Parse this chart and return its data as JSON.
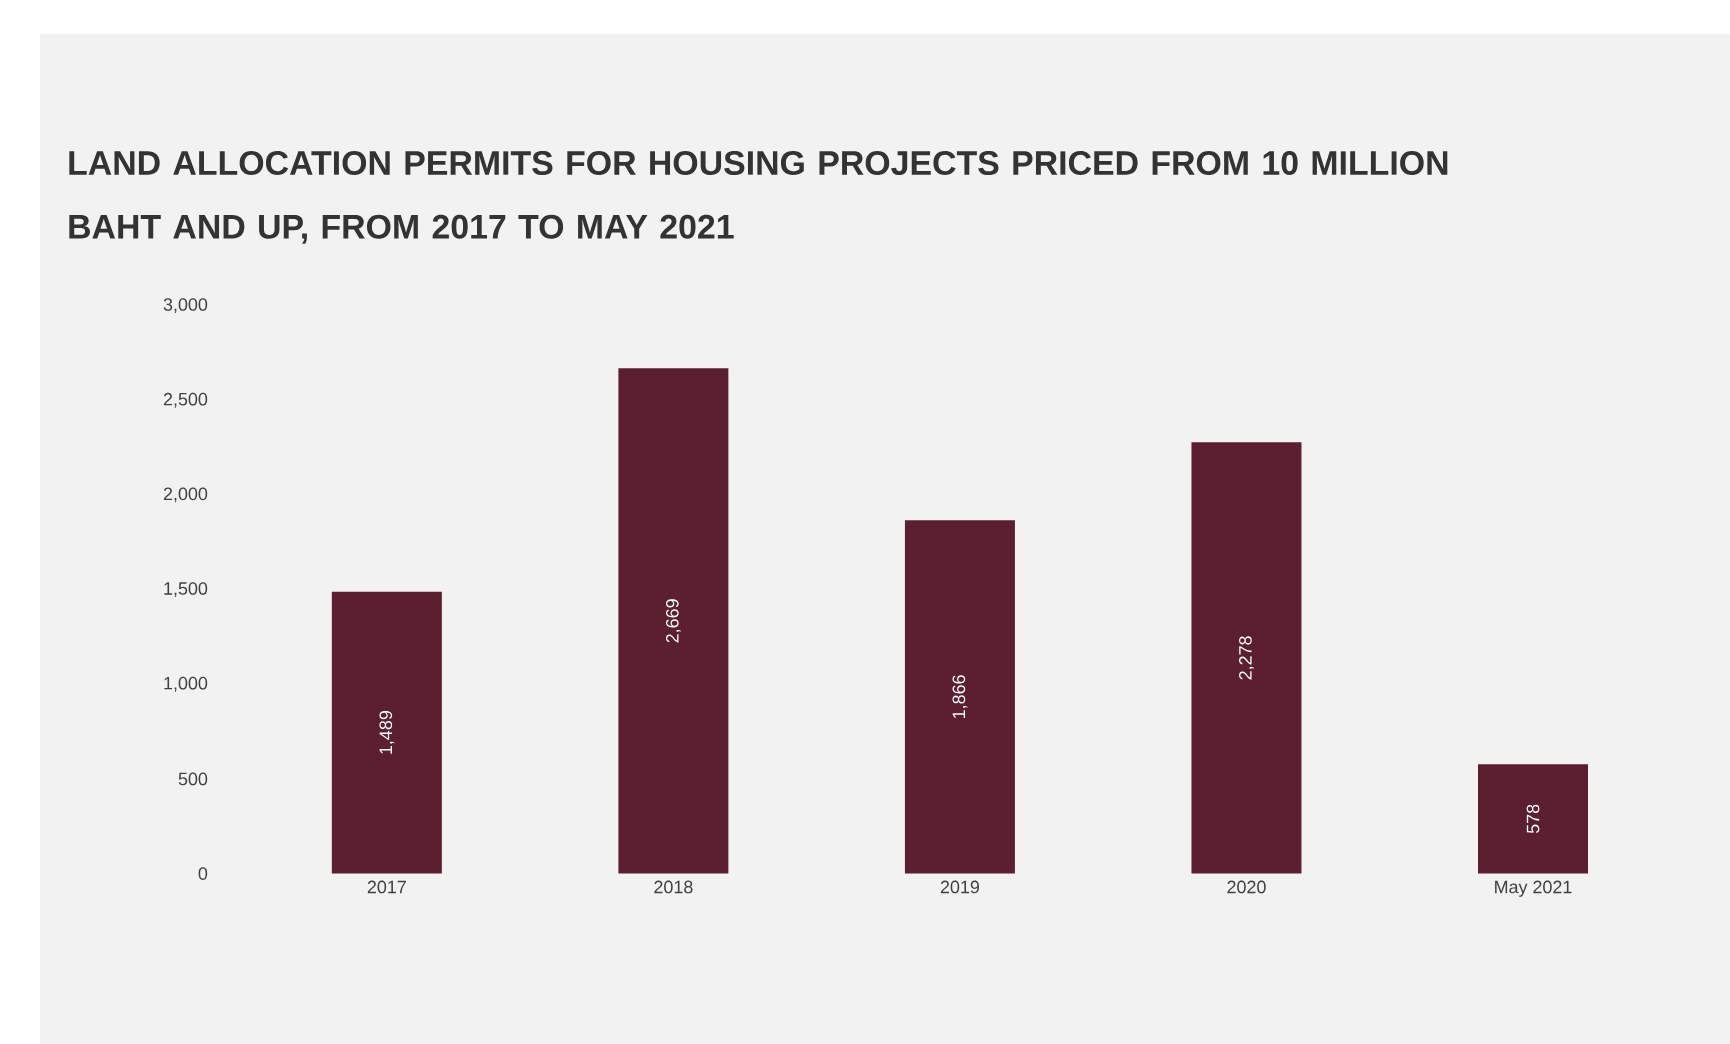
{
  "chart_data": {
    "type": "bar",
    "title": "LAND ALLOCATION PERMITS FOR HOUSING PROJECTS PRICED FROM 10 MILLION BAHT AND UP, FROM 2017 TO MAY 2021",
    "categories": [
      "2017",
      "2018",
      "2019",
      "2020",
      "May 2021"
    ],
    "values": [
      1489,
      2669,
      1866,
      2278,
      578
    ],
    "value_labels": [
      "1,489",
      "2,669",
      "1,866",
      "2,278",
      "578"
    ],
    "color": "#5b1f2f",
    "ylim": [
      0,
      3000
    ],
    "yticks": [
      {
        "value": 0,
        "label": "0"
      },
      {
        "value": 500,
        "label": "500"
      },
      {
        "value": 1000,
        "label": "1,000"
      },
      {
        "value": 1500,
        "label": "1,500"
      },
      {
        "value": 2000,
        "label": "2,000"
      },
      {
        "value": 2500,
        "label": "2,500"
      },
      {
        "value": 3000,
        "label": "3,000"
      }
    ],
    "grid": false
  }
}
